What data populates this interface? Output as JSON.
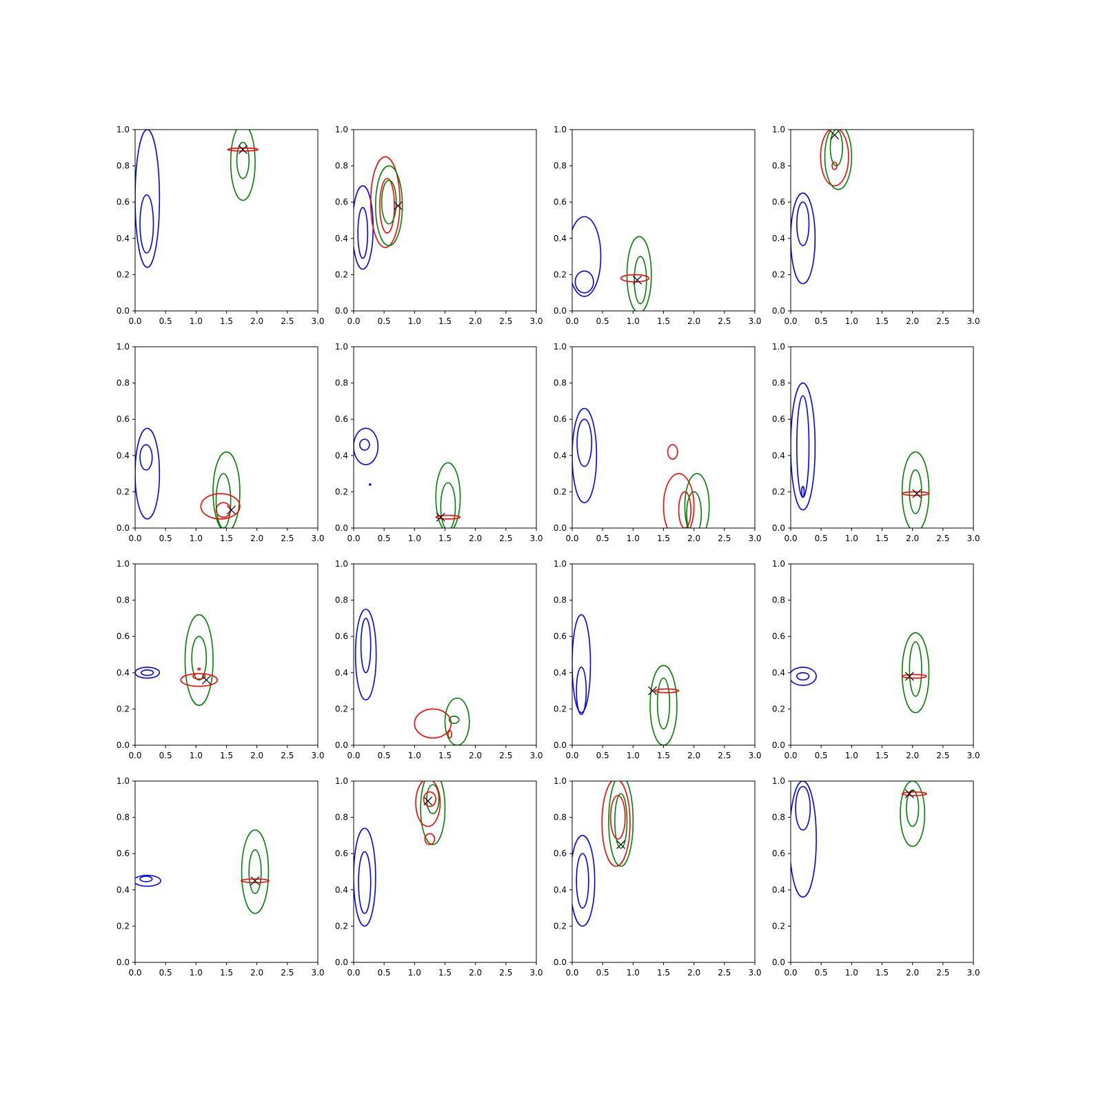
{
  "chart_data": {
    "type": "contour",
    "layout": "4x4 grid of subplots",
    "xlim": [
      0,
      3
    ],
    "ylim": [
      0,
      1
    ],
    "xticks": [
      "0.0",
      "0.5",
      "1.0",
      "1.5",
      "2.0",
      "2.5",
      "3.0"
    ],
    "yticks": [
      "0.0",
      "0.2",
      "0.4",
      "0.6",
      "0.8",
      "1.0"
    ],
    "colors": {
      "blue": "#0000ff",
      "green": "#008000",
      "red": "#ff0000",
      "marker": "#000000"
    },
    "contour_format": "each contour approximated as ellipse [color, center_x, center_y, radius_x, radius_y] in data units",
    "panels": [
      {
        "contours": [
          [
            "blue",
            0.2,
            0.62,
            0.2,
            0.38
          ],
          [
            "blue",
            0.19,
            0.48,
            0.11,
            0.16
          ],
          [
            "green",
            1.77,
            0.82,
            0.2,
            0.21
          ],
          [
            "green",
            1.77,
            0.83,
            0.1,
            0.1
          ],
          [
            "red",
            1.77,
            0.89,
            0.25,
            0.008
          ]
        ],
        "marker": [
          1.77,
          0.89
        ]
      },
      {
        "contours": [
          [
            "blue",
            0.15,
            0.46,
            0.17,
            0.23
          ],
          [
            "blue",
            0.15,
            0.43,
            0.08,
            0.14
          ],
          [
            "red",
            0.52,
            0.6,
            0.24,
            0.25
          ],
          [
            "red",
            0.55,
            0.58,
            0.12,
            0.15
          ],
          [
            "green",
            0.58,
            0.58,
            0.22,
            0.22
          ],
          [
            "green",
            0.58,
            0.6,
            0.12,
            0.12
          ]
        ],
        "marker": [
          0.73,
          0.58
        ]
      },
      {
        "contours": [
          [
            "blue",
            0.2,
            0.3,
            0.27,
            0.22
          ],
          [
            "blue",
            0.2,
            0.16,
            0.15,
            0.06
          ],
          [
            "green",
            1.1,
            0.2,
            0.2,
            0.21
          ],
          [
            "green",
            1.12,
            0.17,
            0.1,
            0.13
          ],
          [
            "red",
            1.03,
            0.18,
            0.23,
            0.02
          ]
        ],
        "marker": [
          1.07,
          0.17
        ]
      },
      {
        "contours": [
          [
            "blue",
            0.2,
            0.4,
            0.2,
            0.25
          ],
          [
            "blue",
            0.2,
            0.48,
            0.1,
            0.12
          ],
          [
            "red",
            0.72,
            0.85,
            0.23,
            0.16
          ],
          [
            "red",
            0.72,
            0.8,
            0.04,
            0.02
          ],
          [
            "green",
            0.78,
            0.85,
            0.22,
            0.18
          ],
          [
            "green",
            0.75,
            0.9,
            0.1,
            0.1
          ]
        ],
        "marker": [
          0.72,
          0.97
        ]
      },
      {
        "contours": [
          [
            "blue",
            0.2,
            0.3,
            0.2,
            0.25
          ],
          [
            "blue",
            0.18,
            0.39,
            0.1,
            0.07
          ],
          [
            "green",
            1.5,
            0.2,
            0.22,
            0.22
          ],
          [
            "green",
            1.45,
            0.15,
            0.12,
            0.15
          ],
          [
            "red",
            1.4,
            0.12,
            0.32,
            0.07
          ],
          [
            "red",
            1.45,
            0.1,
            0.12,
            0.04
          ]
        ],
        "marker": [
          1.58,
          0.1
        ]
      },
      {
        "contours": [
          [
            "blue",
            0.2,
            0.45,
            0.2,
            0.1
          ],
          [
            "blue",
            0.18,
            0.46,
            0.08,
            0.03
          ],
          [
            "blue",
            0.27,
            0.24,
            0.005,
            0.003
          ],
          [
            "green",
            1.55,
            0.17,
            0.2,
            0.19
          ],
          [
            "green",
            1.55,
            0.12,
            0.12,
            0.13
          ],
          [
            "red",
            1.55,
            0.06,
            0.2,
            0.01
          ]
        ],
        "marker": [
          1.43,
          0.06
        ]
      },
      {
        "contours": [
          [
            "blue",
            0.2,
            0.4,
            0.2,
            0.26
          ],
          [
            "blue",
            0.2,
            0.47,
            0.12,
            0.13
          ],
          [
            "red",
            1.75,
            0.12,
            0.25,
            0.18
          ],
          [
            "red",
            1.65,
            0.42,
            0.08,
            0.04
          ],
          [
            "red",
            1.85,
            0.1,
            0.1,
            0.1
          ],
          [
            "green",
            2.05,
            0.12,
            0.2,
            0.18
          ],
          [
            "green",
            2.0,
            0.08,
            0.12,
            0.12
          ]
        ],
        "marker": null
      },
      {
        "contours": [
          [
            "blue",
            0.2,
            0.45,
            0.2,
            0.35
          ],
          [
            "blue",
            0.2,
            0.45,
            0.1,
            0.28
          ],
          [
            "blue",
            0.2,
            0.2,
            0.02,
            0.03
          ],
          [
            "green",
            2.05,
            0.2,
            0.22,
            0.22
          ],
          [
            "green",
            2.05,
            0.2,
            0.1,
            0.12
          ],
          [
            "red",
            2.05,
            0.19,
            0.22,
            0.01
          ]
        ],
        "marker": [
          2.07,
          0.19
        ]
      },
      {
        "contours": [
          [
            "blue",
            0.2,
            0.4,
            0.2,
            0.03
          ],
          [
            "blue",
            0.2,
            0.4,
            0.1,
            0.015
          ],
          [
            "green",
            1.05,
            0.47,
            0.23,
            0.25
          ],
          [
            "green",
            1.05,
            0.48,
            0.12,
            0.12
          ],
          [
            "red",
            1.05,
            0.36,
            0.3,
            0.035
          ],
          [
            "red",
            1.05,
            0.38,
            0.1,
            0.015
          ],
          [
            "red",
            1.05,
            0.42,
            0.02,
            0.005
          ]
        ],
        "marker": [
          1.17,
          0.36
        ]
      },
      {
        "contours": [
          [
            "blue",
            0.2,
            0.5,
            0.17,
            0.25
          ],
          [
            "blue",
            0.2,
            0.55,
            0.08,
            0.15
          ],
          [
            "red",
            1.3,
            0.12,
            0.3,
            0.08
          ],
          [
            "red",
            1.58,
            0.06,
            0.03,
            0.02
          ],
          [
            "green",
            1.7,
            0.13,
            0.2,
            0.13
          ],
          [
            "green",
            1.65,
            0.14,
            0.08,
            0.02
          ]
        ],
        "marker": null
      },
      {
        "contours": [
          [
            "blue",
            0.15,
            0.45,
            0.15,
            0.27
          ],
          [
            "blue",
            0.15,
            0.3,
            0.08,
            0.13
          ],
          [
            "green",
            1.5,
            0.22,
            0.22,
            0.22
          ],
          [
            "green",
            1.5,
            0.23,
            0.1,
            0.14
          ],
          [
            "red",
            1.55,
            0.3,
            0.2,
            0.01
          ]
        ],
        "marker": [
          1.32,
          0.3
        ]
      },
      {
        "contours": [
          [
            "blue",
            0.2,
            0.38,
            0.22,
            0.05
          ],
          [
            "blue",
            0.2,
            0.38,
            0.1,
            0.02
          ],
          [
            "green",
            2.05,
            0.4,
            0.22,
            0.22
          ],
          [
            "green",
            2.05,
            0.42,
            0.1,
            0.15
          ],
          [
            "red",
            2.03,
            0.38,
            0.2,
            0.01
          ]
        ],
        "marker": [
          1.95,
          0.38
        ]
      },
      {
        "contours": [
          [
            "blue",
            0.2,
            0.45,
            0.22,
            0.03
          ],
          [
            "blue",
            0.18,
            0.46,
            0.1,
            0.015
          ],
          [
            "green",
            1.97,
            0.5,
            0.22,
            0.23
          ],
          [
            "green",
            1.97,
            0.5,
            0.1,
            0.12
          ],
          [
            "red",
            1.97,
            0.45,
            0.23,
            0.01
          ]
        ],
        "marker": [
          1.97,
          0.45
        ]
      },
      {
        "contours": [
          [
            "blue",
            0.18,
            0.47,
            0.18,
            0.27
          ],
          [
            "blue",
            0.18,
            0.44,
            0.1,
            0.17
          ],
          [
            "green",
            1.3,
            0.85,
            0.2,
            0.2
          ],
          [
            "green",
            1.3,
            0.9,
            0.1,
            0.08
          ],
          [
            "red",
            1.22,
            0.88,
            0.2,
            0.13
          ],
          [
            "red",
            1.25,
            0.9,
            0.1,
            0.04
          ],
          [
            "red",
            1.25,
            0.68,
            0.08,
            0.03
          ]
        ],
        "marker": [
          1.22,
          0.89
        ]
      },
      {
        "contours": [
          [
            "blue",
            0.17,
            0.45,
            0.2,
            0.25
          ],
          [
            "blue",
            0.17,
            0.45,
            0.1,
            0.15
          ],
          [
            "red",
            0.72,
            0.77,
            0.23,
            0.24
          ],
          [
            "red",
            0.75,
            0.8,
            0.12,
            0.12
          ],
          [
            "green",
            0.8,
            0.78,
            0.2,
            0.25
          ],
          [
            "green",
            0.8,
            0.78,
            0.1,
            0.15
          ]
        ],
        "marker": [
          0.8,
          0.65
        ]
      },
      {
        "contours": [
          [
            "blue",
            0.2,
            0.68,
            0.22,
            0.32
          ],
          [
            "blue",
            0.2,
            0.85,
            0.12,
            0.12
          ],
          [
            "green",
            2.0,
            0.82,
            0.2,
            0.18
          ],
          [
            "green",
            2.0,
            0.85,
            0.1,
            0.1
          ],
          [
            "red",
            2.03,
            0.93,
            0.2,
            0.01
          ]
        ],
        "marker": [
          1.95,
          0.93
        ]
      }
    ]
  }
}
